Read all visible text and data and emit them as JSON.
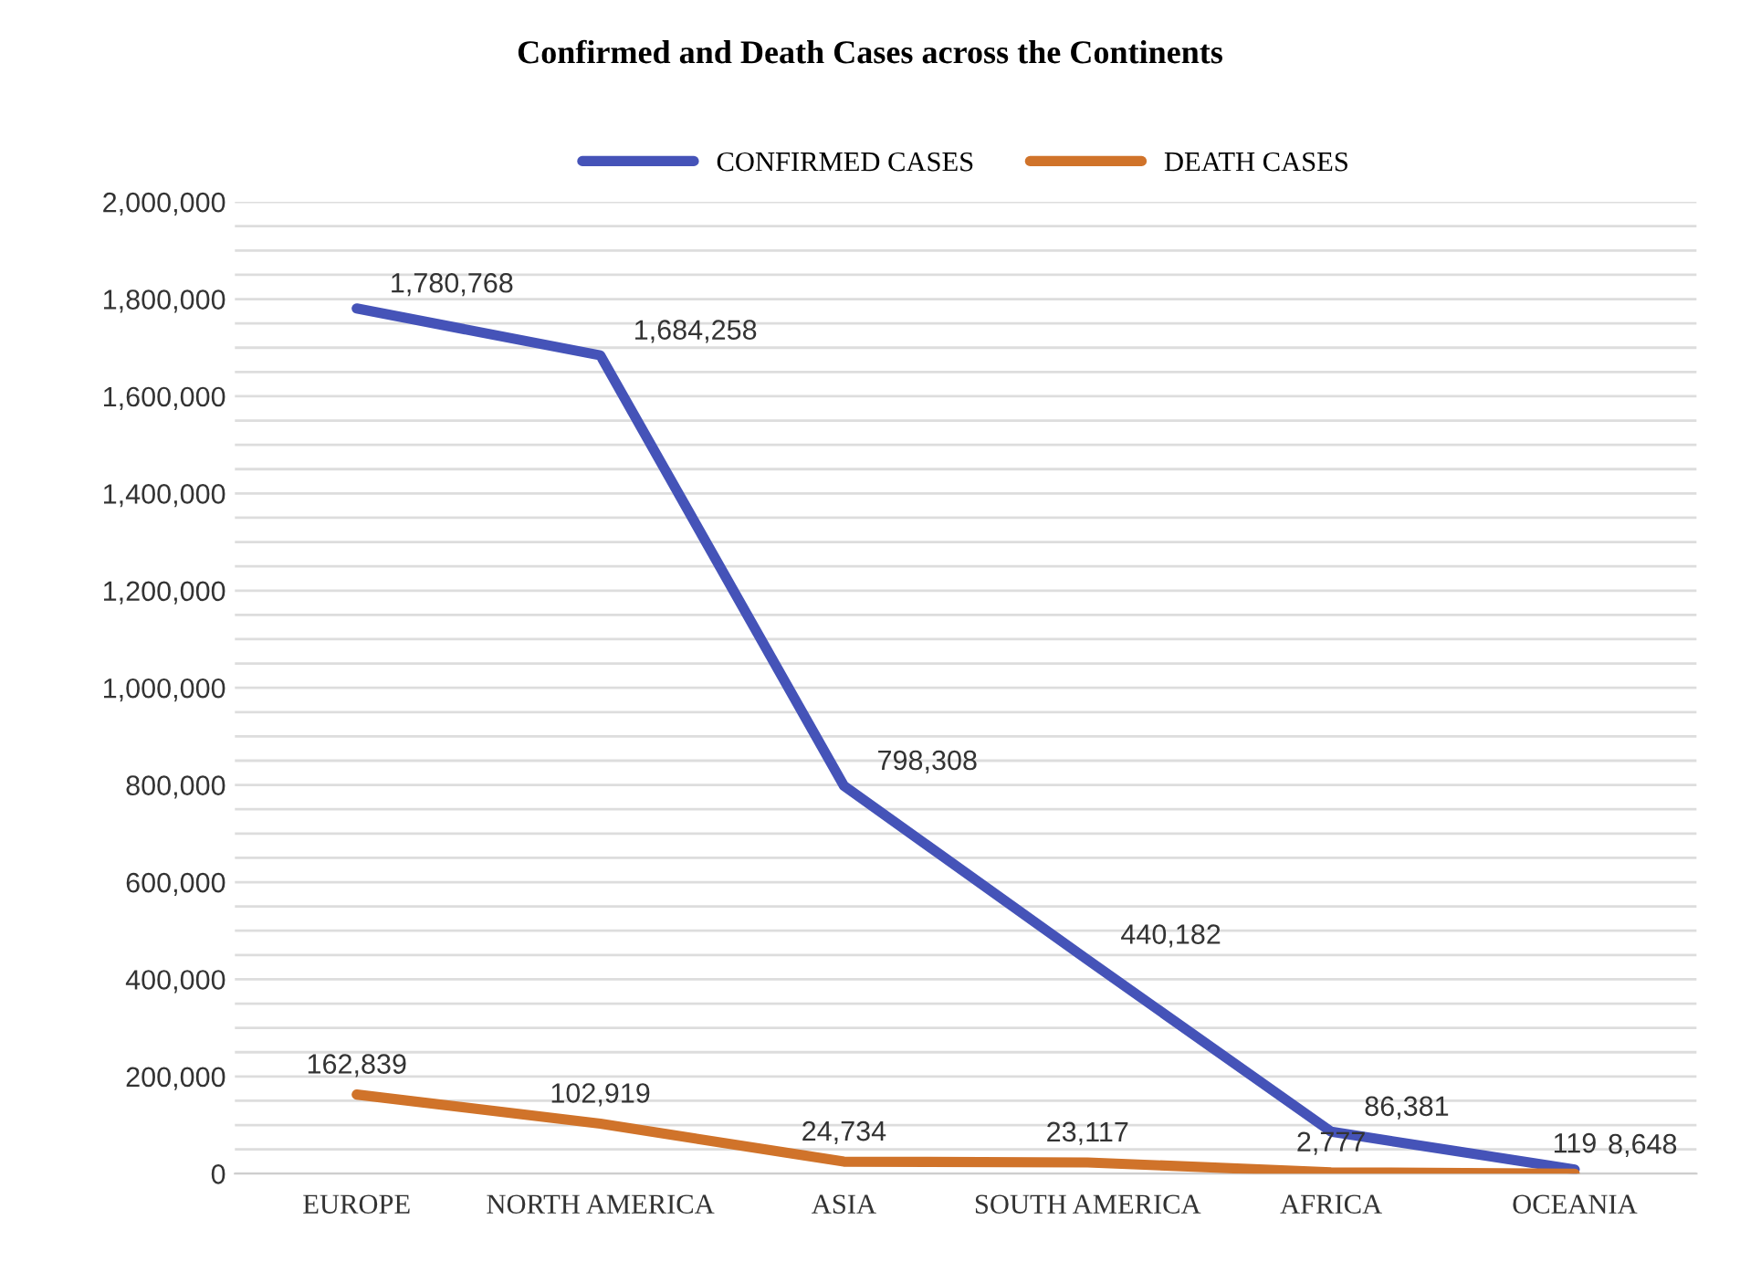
{
  "chart_data": {
    "type": "line",
    "title": "Confirmed and Death Cases across the Continents",
    "categories": [
      "EUROPE",
      "NORTH AMERICA",
      "ASIA",
      "SOUTH AMERICA",
      "AFRICA",
      "OCEANIA"
    ],
    "series": [
      {
        "name": "CONFIRMED CASES",
        "color": "#4553b8",
        "values": [
          1780768,
          1684258,
          798308,
          440182,
          86381,
          8648
        ],
        "value_labels": [
          "1,780,768",
          "1,684,258",
          "798,308",
          "440,182",
          "86,381",
          "8,648"
        ]
      },
      {
        "name": "DEATH CASES",
        "color": "#d0732a",
        "values": [
          162839,
          102919,
          24734,
          23117,
          2777,
          119
        ],
        "value_labels": [
          "162,839",
          "102,919",
          "24,734",
          "23,117",
          "2,777",
          "119"
        ]
      }
    ],
    "ylim": [
      0,
      2000000
    ],
    "yticks": [
      0,
      {
        "value": 50000,
        "label": null
      },
      {
        "value": 100000,
        "label": null
      },
      {
        "value": 150000,
        "label": null
      },
      {
        "value": 200000,
        "label": "200,000"
      },
      {
        "value": 250000,
        "label": null
      },
      {
        "value": 300000,
        "label": null
      },
      {
        "value": 350000,
        "label": null
      },
      {
        "value": 400000,
        "label": "400,000"
      },
      {
        "value": 450000,
        "label": null
      },
      {
        "value": 500000,
        "label": null
      },
      {
        "value": 550000,
        "label": null
      },
      {
        "value": 600000,
        "label": "600,000"
      },
      {
        "value": 650000,
        "label": null
      },
      {
        "value": 700000,
        "label": null
      },
      {
        "value": 750000,
        "label": null
      },
      {
        "value": 800000,
        "label": "800,000"
      },
      {
        "value": 850000,
        "label": null
      },
      {
        "value": 900000,
        "label": null
      },
      {
        "value": 950000,
        "label": null
      },
      {
        "value": 1000000,
        "label": "1,000,000"
      },
      {
        "value": 1050000,
        "label": null
      },
      {
        "value": 1100000,
        "label": null
      },
      {
        "value": 1150000,
        "label": null
      },
      {
        "value": 1200000,
        "label": "1,200,000"
      },
      {
        "value": 1250000,
        "label": null
      },
      {
        "value": 1300000,
        "label": null
      },
      {
        "value": 1350000,
        "label": null
      },
      {
        "value": 1400000,
        "label": "1,400,000"
      },
      {
        "value": 1450000,
        "label": null
      },
      {
        "value": 1500000,
        "label": null
      },
      {
        "value": 1550000,
        "label": null
      },
      {
        "value": 1600000,
        "label": "1,600,000"
      },
      {
        "value": 1650000,
        "label": null
      },
      {
        "value": 1700000,
        "label": null
      },
      {
        "value": 1750000,
        "label": null
      },
      {
        "value": 1800000,
        "label": "1,800,000"
      },
      {
        "value": 1850000,
        "label": null
      },
      {
        "value": 1900000,
        "label": null
      },
      {
        "value": 1950000,
        "label": null
      },
      {
        "value": 2000000,
        "label": "2,000,000"
      }
    ],
    "grid": "y",
    "legend": "top",
    "marker": "none",
    "line_style": "solid"
  }
}
